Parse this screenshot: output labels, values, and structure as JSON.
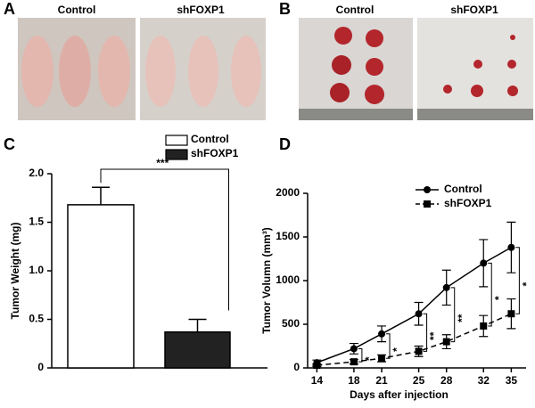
{
  "photos": [
    {
      "panel_label": "A",
      "groups": [
        "Control",
        "shFOXP1"
      ]
    },
    {
      "panel_label": "B",
      "groups": [
        "Control",
        "shFOXP1"
      ]
    }
  ],
  "chart_data": [
    {
      "type": "bar",
      "panel_label": "C",
      "y_label": "Tumor Weight (mg)",
      "categories": [
        "Control",
        "shFOXP1"
      ],
      "values": [
        1.68,
        0.37
      ],
      "errors": [
        0.18,
        0.13
      ],
      "colors": [
        "#ffffff",
        "#222222"
      ],
      "ylim": [
        0,
        2
      ],
      "yticks": [
        0,
        0.5,
        {
          "value": 1,
          "label": "1.0"
        },
        1.5,
        {
          "value": 2,
          "label": "2.0"
        }
      ],
      "annotation": "***",
      "legend": "upper-right"
    },
    {
      "type": "line",
      "panel_label": "D",
      "x_label": "Days after injection",
      "y_label": "Tumor Volumn (mm³)",
      "x": [
        14,
        18,
        21,
        25,
        28,
        32,
        35
      ],
      "series": [
        {
          "name": "Control",
          "color": "#000000",
          "marker": "circle",
          "dashed": false,
          "values": [
            60,
            220,
            390,
            620,
            920,
            1200,
            1380
          ],
          "errors": [
            30,
            60,
            90,
            130,
            200,
            270,
            290
          ]
        },
        {
          "name": "shFOXP1",
          "color": "#000000",
          "marker": "square",
          "dashed": true,
          "values": [
            30,
            70,
            110,
            190,
            300,
            480,
            620
          ],
          "errors": [
            15,
            25,
            40,
            60,
            80,
            120,
            170
          ]
        }
      ],
      "significance": [
        null,
        "*",
        "*",
        "**",
        "**",
        "*",
        "*"
      ],
      "xlim": [
        13,
        36.6
      ],
      "xticks": [
        14,
        18,
        21,
        25,
        28,
        32,
        35
      ],
      "ylim": [
        0,
        2000
      ],
      "yticks": [
        0,
        500,
        1000,
        1500,
        2000
      ],
      "legend": "upper-left"
    }
  ]
}
